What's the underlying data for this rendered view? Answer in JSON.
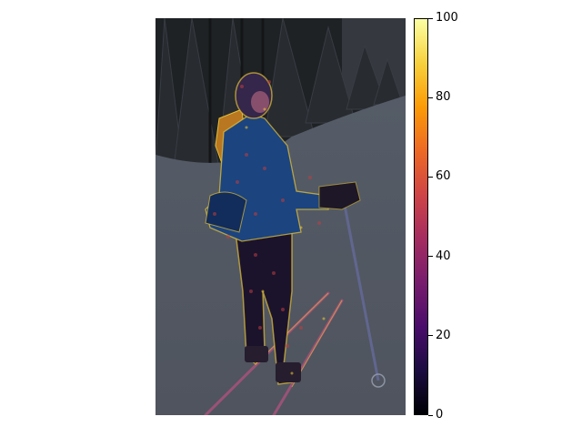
{
  "scene": {
    "description_icon": "skier-heatmap-overlay"
  },
  "colorbar": {
    "colormap": [
      "#000004",
      "#1b0c41",
      "#4a0c6b",
      "#781c6d",
      "#a52c60",
      "#cf4446",
      "#ed6925",
      "#fb9b06",
      "#f7d13d",
      "#fcffa4"
    ],
    "min": 0,
    "max": 100,
    "ticks": [
      {
        "value": 0,
        "label": "0"
      },
      {
        "value": 20,
        "label": "20"
      },
      {
        "value": 40,
        "label": "40"
      },
      {
        "value": 60,
        "label": "60"
      },
      {
        "value": 80,
        "label": "80"
      },
      {
        "value": 100,
        "label": "100"
      }
    ]
  }
}
